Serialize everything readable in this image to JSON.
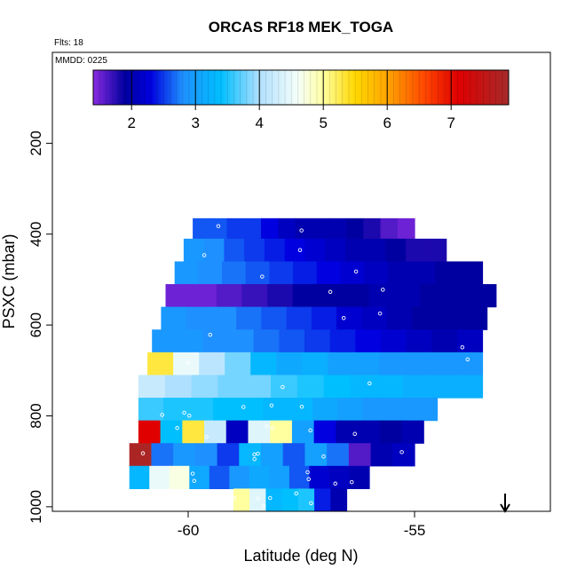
{
  "chart_data": {
    "type": "heatmap",
    "title": "ORCAS RF18 MEK_TOGA",
    "flights_label": "Flts: 18",
    "date_label": "MMDD: 0225",
    "xlabel": "Latitude (deg N)",
    "ylabel": "PSXC (mbar)",
    "xlim": [
      -63,
      -52
    ],
    "ylim": [
      1010,
      0
    ],
    "x_ticks": [
      -60,
      -55
    ],
    "y_ticks": [
      200,
      400,
      600,
      800,
      1000
    ],
    "colorbar": {
      "range": [
        1.4,
        7.9
      ],
      "ticks": [
        2,
        3,
        4,
        5,
        6,
        7
      ],
      "stops": [
        {
          "v": 1.4,
          "c": "#8a2be2"
        },
        {
          "v": 1.9,
          "c": "#0000a0"
        },
        {
          "v": 2.3,
          "c": "#0000e0"
        },
        {
          "v": 2.8,
          "c": "#1e90ff"
        },
        {
          "v": 3.4,
          "c": "#00bfff"
        },
        {
          "v": 4.0,
          "c": "#b0e0ff"
        },
        {
          "v": 4.6,
          "c": "#f5fffa"
        },
        {
          "v": 5.0,
          "c": "#ffffa0"
        },
        {
          "v": 5.5,
          "c": "#ffd700"
        },
        {
          "v": 6.0,
          "c": "#ffa500"
        },
        {
          "v": 6.6,
          "c": "#ff4500"
        },
        {
          "v": 7.1,
          "c": "#e00000"
        },
        {
          "v": 7.9,
          "c": "#a52a2a"
        }
      ]
    },
    "arrow_latitude": -53,
    "levels": [
      {
        "p": 390,
        "x0": -59.9,
        "x1": -55.0,
        "v": [
          2.6,
          2.6,
          2.5,
          2.5,
          2.3,
          2.1,
          2.0,
          2.0,
          2.0,
          1.9,
          1.8,
          1.6,
          1.5
        ]
      },
      {
        "p": 435,
        "x0": -60.1,
        "x1": -54.3,
        "v": [
          2.9,
          2.8,
          2.6,
          2.5,
          2.4,
          2.3,
          2.2,
          2.1,
          2.0,
          2.0,
          1.9,
          1.8,
          1.8
        ]
      },
      {
        "p": 485,
        "x0": -60.3,
        "x1": -53.5,
        "v": [
          2.9,
          2.8,
          2.7,
          2.6,
          2.5,
          2.4,
          2.3,
          2.2,
          2.1,
          2.0,
          2.0,
          1.9,
          1.9
        ]
      },
      {
        "p": 535,
        "x0": -60.5,
        "x1": -53.2,
        "v": [
          1.5,
          1.5,
          1.6,
          1.7,
          1.8,
          1.9,
          1.9,
          1.9,
          2.0,
          2.0,
          1.9,
          1.9,
          1.9
        ]
      },
      {
        "p": 585,
        "x0": -60.6,
        "x1": -53.4,
        "v": [
          2.9,
          2.8,
          2.8,
          2.7,
          2.6,
          2.5,
          2.4,
          2.2,
          2.1,
          2.0,
          1.9,
          1.9,
          1.9
        ]
      },
      {
        "p": 635,
        "x0": -60.8,
        "x1": -53.5,
        "v": [
          2.9,
          2.9,
          2.8,
          2.8,
          2.7,
          2.6,
          2.5,
          2.4,
          2.3,
          2.2,
          2.1,
          2.0,
          2.1
        ]
      },
      {
        "p": 685,
        "x0": -60.9,
        "x1": -53.5,
        "v": [
          5.3,
          4.5,
          4.1,
          3.8,
          3.3,
          3.1,
          3.2,
          3.0,
          3.0,
          2.9,
          2.9,
          2.9,
          2.9
        ]
      },
      {
        "p": 735,
        "x0": -61.1,
        "x1": -53.5,
        "v": [
          4.2,
          4.0,
          3.9,
          3.8,
          3.8,
          3.6,
          3.5,
          3.4,
          3.3,
          3.3,
          3.2,
          3.2,
          3.2
        ]
      },
      {
        "p": 785,
        "x0": -61.1,
        "x1": -54.5,
        "v": [
          3.6,
          3.5,
          3.5,
          3.4,
          3.4,
          3.3,
          3.3,
          3.1,
          3.0,
          2.9,
          2.9,
          2.9
        ]
      },
      {
        "p": 835,
        "x0": -61.1,
        "x1": -54.8,
        "v": [
          7.1,
          3.4,
          5.3,
          4.2,
          2.1,
          4.4,
          5.0,
          3.0,
          2.3,
          2.0,
          2.0,
          1.9,
          2.0
        ]
      },
      {
        "p": 885,
        "x0": -61.3,
        "x1": -55.0,
        "v": [
          7.8,
          2.7,
          2.9,
          2.8,
          2.5,
          3.3,
          3.0,
          2.6,
          3.0,
          2.7,
          1.6,
          2.0,
          2.1
        ]
      },
      {
        "p": 935,
        "x0": -61.3,
        "x1": -56.0,
        "v": [
          3.3,
          4.5,
          4.7,
          3.1,
          2.6,
          2.9,
          3.1,
          3.0,
          2.6,
          2.2,
          2.1,
          2.0
        ]
      },
      {
        "p": 985,
        "x0": -59.0,
        "x1": -56.5,
        "v": [
          5.0,
          4.4,
          3.3,
          3.4,
          3.5,
          2.4,
          2.0
        ]
      }
    ]
  }
}
